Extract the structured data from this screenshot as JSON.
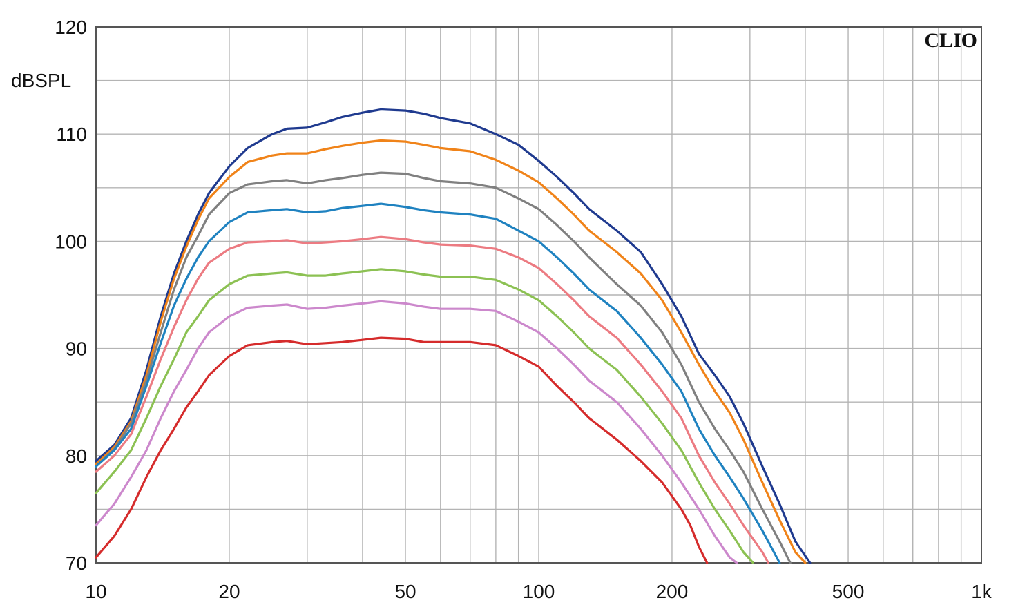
{
  "chart_data": {
    "type": "line",
    "title": "",
    "xlabel": "",
    "ylabel": "dBSPL",
    "brand": "CLIO",
    "x_scale": "log",
    "xlim": [
      10,
      1000
    ],
    "ylim": [
      70,
      120
    ],
    "grid": true,
    "legend": "none",
    "x_tick_labels": [
      {
        "value": 10,
        "label": "10"
      },
      {
        "value": 20,
        "label": "20"
      },
      {
        "value": 50,
        "label": "50"
      },
      {
        "value": 100,
        "label": "100"
      },
      {
        "value": 200,
        "label": "200"
      },
      {
        "value": 500,
        "label": "500"
      },
      {
        "value": 1000,
        "label": "1k"
      }
    ],
    "y_tick_labels": [
      {
        "value": 70,
        "label": "70"
      },
      {
        "value": 80,
        "label": "80"
      },
      {
        "value": 90,
        "label": "90"
      },
      {
        "value": 100,
        "label": "100"
      },
      {
        "value": 110,
        "label": "110"
      },
      {
        "value": 120,
        "label": "120"
      }
    ],
    "series": [
      {
        "color": "#1f3a8f",
        "points": [
          [
            10,
            79.5
          ],
          [
            11,
            81
          ],
          [
            12,
            83.5
          ],
          [
            13,
            88
          ],
          [
            14,
            93
          ],
          [
            15,
            97
          ],
          [
            16,
            100
          ],
          [
            17,
            102.5
          ],
          [
            18,
            104.5
          ],
          [
            20,
            107
          ],
          [
            22,
            108.7
          ],
          [
            25,
            110
          ],
          [
            27,
            110.5
          ],
          [
            30,
            110.6
          ],
          [
            33,
            111.1
          ],
          [
            36,
            111.6
          ],
          [
            40,
            112
          ],
          [
            44,
            112.3
          ],
          [
            50,
            112.2
          ],
          [
            55,
            111.9
          ],
          [
            60,
            111.5
          ],
          [
            70,
            111
          ],
          [
            80,
            110
          ],
          [
            90,
            109
          ],
          [
            100,
            107.5
          ],
          [
            110,
            106
          ],
          [
            120,
            104.5
          ],
          [
            130,
            103
          ],
          [
            150,
            101
          ],
          [
            170,
            99
          ],
          [
            190,
            96
          ],
          [
            210,
            93
          ],
          [
            230,
            89.5
          ],
          [
            250,
            87.5
          ],
          [
            270,
            85.5
          ],
          [
            290,
            83
          ],
          [
            320,
            79
          ],
          [
            350,
            75.5
          ],
          [
            380,
            72
          ],
          [
            410,
            70
          ]
        ]
      },
      {
        "color": "#f08319",
        "points": [
          [
            10,
            79.2
          ],
          [
            11,
            80.8
          ],
          [
            12,
            83.2
          ],
          [
            13,
            87.5
          ],
          [
            14,
            92.5
          ],
          [
            15,
            96.5
          ],
          [
            16,
            99.5
          ],
          [
            17,
            102
          ],
          [
            18,
            104
          ],
          [
            20,
            106
          ],
          [
            22,
            107.4
          ],
          [
            25,
            108
          ],
          [
            27,
            108.2
          ],
          [
            30,
            108.2
          ],
          [
            33,
            108.6
          ],
          [
            36,
            108.9
          ],
          [
            40,
            109.2
          ],
          [
            44,
            109.4
          ],
          [
            50,
            109.3
          ],
          [
            55,
            109
          ],
          [
            60,
            108.7
          ],
          [
            70,
            108.4
          ],
          [
            80,
            107.6
          ],
          [
            90,
            106.6
          ],
          [
            100,
            105.5
          ],
          [
            110,
            104
          ],
          [
            120,
            102.5
          ],
          [
            130,
            101
          ],
          [
            150,
            99
          ],
          [
            170,
            97
          ],
          [
            190,
            94.5
          ],
          [
            210,
            91.5
          ],
          [
            230,
            88.5
          ],
          [
            250,
            86
          ],
          [
            270,
            84
          ],
          [
            290,
            81.5
          ],
          [
            320,
            77.5
          ],
          [
            350,
            74
          ],
          [
            380,
            71
          ],
          [
            400,
            70
          ]
        ]
      },
      {
        "color": "#808080",
        "points": [
          [
            10,
            79
          ],
          [
            11,
            80.6
          ],
          [
            12,
            83
          ],
          [
            13,
            87
          ],
          [
            14,
            91.5
          ],
          [
            15,
            95.5
          ],
          [
            16,
            98.5
          ],
          [
            17,
            100.5
          ],
          [
            18,
            102.5
          ],
          [
            20,
            104.5
          ],
          [
            22,
            105.3
          ],
          [
            25,
            105.6
          ],
          [
            27,
            105.7
          ],
          [
            30,
            105.4
          ],
          [
            33,
            105.7
          ],
          [
            36,
            105.9
          ],
          [
            40,
            106.2
          ],
          [
            44,
            106.4
          ],
          [
            50,
            106.3
          ],
          [
            55,
            105.9
          ],
          [
            60,
            105.6
          ],
          [
            70,
            105.4
          ],
          [
            80,
            105
          ],
          [
            90,
            104
          ],
          [
            100,
            103
          ],
          [
            110,
            101.5
          ],
          [
            120,
            100
          ],
          [
            130,
            98.5
          ],
          [
            150,
            96
          ],
          [
            170,
            94
          ],
          [
            190,
            91.5
          ],
          [
            210,
            88.5
          ],
          [
            230,
            85
          ],
          [
            250,
            82.5
          ],
          [
            270,
            80.5
          ],
          [
            290,
            78.5
          ],
          [
            320,
            75
          ],
          [
            350,
            72
          ],
          [
            370,
            70
          ]
        ]
      },
      {
        "color": "#1f82c0",
        "points": [
          [
            10,
            79
          ],
          [
            11,
            80.5
          ],
          [
            12,
            82.5
          ],
          [
            13,
            86.5
          ],
          [
            14,
            90.5
          ],
          [
            15,
            94
          ],
          [
            16,
            96.5
          ],
          [
            17,
            98.5
          ],
          [
            18,
            100
          ],
          [
            20,
            101.8
          ],
          [
            22,
            102.7
          ],
          [
            25,
            102.9
          ],
          [
            27,
            103
          ],
          [
            30,
            102.7
          ],
          [
            33,
            102.8
          ],
          [
            36,
            103.1
          ],
          [
            40,
            103.3
          ],
          [
            44,
            103.5
          ],
          [
            50,
            103.2
          ],
          [
            55,
            102.9
          ],
          [
            60,
            102.7
          ],
          [
            70,
            102.5
          ],
          [
            80,
            102.1
          ],
          [
            90,
            101
          ],
          [
            100,
            100
          ],
          [
            110,
            98.5
          ],
          [
            120,
            97
          ],
          [
            130,
            95.5
          ],
          [
            150,
            93.5
          ],
          [
            170,
            91
          ],
          [
            190,
            88.5
          ],
          [
            210,
            86
          ],
          [
            230,
            82.5
          ],
          [
            250,
            80
          ],
          [
            270,
            78
          ],
          [
            290,
            76
          ],
          [
            320,
            73
          ],
          [
            345,
            70.5
          ],
          [
            350,
            70
          ]
        ]
      },
      {
        "color": "#ec7b82",
        "points": [
          [
            10,
            78.5
          ],
          [
            11,
            80
          ],
          [
            12,
            82
          ],
          [
            13,
            85.5
          ],
          [
            14,
            89
          ],
          [
            15,
            92
          ],
          [
            16,
            94.5
          ],
          [
            17,
            96.5
          ],
          [
            18,
            98
          ],
          [
            20,
            99.3
          ],
          [
            22,
            99.9
          ],
          [
            25,
            100
          ],
          [
            27,
            100.1
          ],
          [
            30,
            99.8
          ],
          [
            33,
            99.9
          ],
          [
            36,
            100
          ],
          [
            40,
            100.2
          ],
          [
            44,
            100.4
          ],
          [
            50,
            100.2
          ],
          [
            55,
            99.9
          ],
          [
            60,
            99.7
          ],
          [
            70,
            99.6
          ],
          [
            80,
            99.3
          ],
          [
            90,
            98.5
          ],
          [
            100,
            97.5
          ],
          [
            110,
            96
          ],
          [
            120,
            94.5
          ],
          [
            130,
            93
          ],
          [
            150,
            91
          ],
          [
            170,
            88.5
          ],
          [
            190,
            86
          ],
          [
            210,
            83.5
          ],
          [
            230,
            80
          ],
          [
            250,
            77.5
          ],
          [
            270,
            75.5
          ],
          [
            290,
            73.5
          ],
          [
            320,
            71
          ],
          [
            330,
            70
          ]
        ]
      },
      {
        "color": "#8cc153",
        "points": [
          [
            10,
            76.5
          ],
          [
            11,
            78.5
          ],
          [
            12,
            80.5
          ],
          [
            13,
            83.5
          ],
          [
            14,
            86.5
          ],
          [
            15,
            89
          ],
          [
            16,
            91.5
          ],
          [
            17,
            93
          ],
          [
            18,
            94.5
          ],
          [
            20,
            96
          ],
          [
            22,
            96.8
          ],
          [
            25,
            97
          ],
          [
            27,
            97.1
          ],
          [
            30,
            96.8
          ],
          [
            33,
            96.8
          ],
          [
            36,
            97
          ],
          [
            40,
            97.2
          ],
          [
            44,
            97.4
          ],
          [
            50,
            97.2
          ],
          [
            55,
            96.9
          ],
          [
            60,
            96.7
          ],
          [
            70,
            96.7
          ],
          [
            80,
            96.4
          ],
          [
            90,
            95.5
          ],
          [
            100,
            94.5
          ],
          [
            110,
            93
          ],
          [
            120,
            91.5
          ],
          [
            130,
            90
          ],
          [
            150,
            88
          ],
          [
            170,
            85.5
          ],
          [
            190,
            83
          ],
          [
            210,
            80.5
          ],
          [
            230,
            77.5
          ],
          [
            250,
            75
          ],
          [
            270,
            73
          ],
          [
            290,
            71
          ],
          [
            305,
            70
          ]
        ]
      },
      {
        "color": "#cc88cc",
        "points": [
          [
            10,
            73.5
          ],
          [
            11,
            75.5
          ],
          [
            12,
            78
          ],
          [
            13,
            80.5
          ],
          [
            14,
            83.5
          ],
          [
            15,
            86
          ],
          [
            16,
            88
          ],
          [
            17,
            90
          ],
          [
            18,
            91.5
          ],
          [
            20,
            93
          ],
          [
            22,
            93.8
          ],
          [
            25,
            94
          ],
          [
            27,
            94.1
          ],
          [
            30,
            93.7
          ],
          [
            33,
            93.8
          ],
          [
            36,
            94
          ],
          [
            40,
            94.2
          ],
          [
            44,
            94.4
          ],
          [
            50,
            94.2
          ],
          [
            55,
            93.9
          ],
          [
            60,
            93.7
          ],
          [
            70,
            93.7
          ],
          [
            80,
            93.5
          ],
          [
            90,
            92.5
          ],
          [
            100,
            91.5
          ],
          [
            110,
            90
          ],
          [
            120,
            88.5
          ],
          [
            130,
            87
          ],
          [
            150,
            85
          ],
          [
            170,
            82.5
          ],
          [
            190,
            80
          ],
          [
            210,
            77.5
          ],
          [
            230,
            75
          ],
          [
            250,
            72.5
          ],
          [
            270,
            70.5
          ],
          [
            280,
            70
          ]
        ]
      },
      {
        "color": "#d52b2b",
        "points": [
          [
            10,
            70.5
          ],
          [
            11,
            72.5
          ],
          [
            12,
            75
          ],
          [
            13,
            78
          ],
          [
            14,
            80.5
          ],
          [
            15,
            82.5
          ],
          [
            16,
            84.5
          ],
          [
            17,
            86
          ],
          [
            18,
            87.5
          ],
          [
            20,
            89.3
          ],
          [
            22,
            90.3
          ],
          [
            25,
            90.6
          ],
          [
            27,
            90.7
          ],
          [
            30,
            90.4
          ],
          [
            33,
            90.5
          ],
          [
            36,
            90.6
          ],
          [
            40,
            90.8
          ],
          [
            44,
            91
          ],
          [
            50,
            90.9
          ],
          [
            55,
            90.6
          ],
          [
            60,
            90.6
          ],
          [
            70,
            90.6
          ],
          [
            80,
            90.3
          ],
          [
            90,
            89.3
          ],
          [
            100,
            88.3
          ],
          [
            110,
            86.5
          ],
          [
            120,
            85
          ],
          [
            130,
            83.5
          ],
          [
            150,
            81.5
          ],
          [
            170,
            79.5
          ],
          [
            190,
            77.5
          ],
          [
            210,
            75
          ],
          [
            220,
            73.5
          ],
          [
            230,
            71.5
          ],
          [
            240,
            70
          ]
        ]
      }
    ]
  }
}
